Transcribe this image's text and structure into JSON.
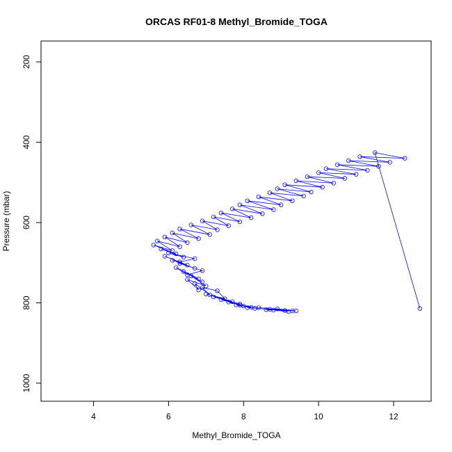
{
  "chart_data": {
    "type": "scatter",
    "title": "ORCAS RF01-8 Methyl_Bromide_TOGA",
    "xlabel": "Methyl_Bromide_TOGA",
    "ylabel": "Pressure (mbar)",
    "xlim": [
      2.6,
      13.0
    ],
    "ylim": [
      1045,
      148
    ],
    "y_reversed": true,
    "x_ticks": [
      4,
      6,
      8,
      10,
      12
    ],
    "y_ticks": [
      200,
      400,
      600,
      800,
      1000
    ],
    "grid": false,
    "legend": "none",
    "marker": "open-circle",
    "connected": true,
    "colors": {
      "series": "#0000ff"
    },
    "series": [
      {
        "x": [
          9.2,
          8.8,
          9.4,
          8.9,
          8.6,
          9.1,
          8.1,
          8.7,
          9.3,
          8.4,
          7.9,
          8.3,
          7.8,
          8.2,
          7.6,
          8.0,
          7.4,
          7.9,
          7.2,
          7.7,
          7.0,
          7.5,
          7.3,
          6.9,
          7.1,
          6.7,
          6.8,
          6.5,
          7.0,
          6.6,
          6.9,
          6.4,
          6.8,
          6.2,
          6.5,
          6.9,
          6.3,
          6.7,
          6.1,
          6.5,
          5.9,
          6.3,
          6.7,
          6.0,
          6.4,
          5.8,
          6.2,
          5.6,
          6.1,
          5.7,
          6.3,
          5.9,
          6.5,
          6.1,
          6.8,
          6.3,
          7.1,
          6.6,
          7.3,
          6.9,
          7.6,
          7.2,
          7.9,
          7.4,
          8.2,
          7.7,
          8.5,
          7.9,
          8.8,
          8.1,
          9.0,
          8.4,
          9.3,
          8.7,
          9.6,
          8.9,
          9.8,
          9.1,
          10.1,
          9.4,
          10.4,
          9.7,
          10.7,
          10.0,
          11.0,
          10.2,
          11.3,
          10.5,
          11.6,
          10.8,
          11.9,
          11.1,
          12.3,
          11.5,
          12.7
        ],
        "y": [
          822,
          818,
          820,
          815,
          817,
          819,
          812,
          816,
          820,
          812,
          806,
          814,
          805,
          811,
          798,
          808,
          792,
          803,
          785,
          797,
          778,
          790,
          770,
          762,
          780,
          752,
          768,
          742,
          758,
          733,
          748,
          722,
          740,
          712,
          730,
          720,
          702,
          714,
          694,
          706,
          684,
          698,
          690,
          676,
          686,
          666,
          678,
          656,
          670,
          646,
          660,
          636,
          650,
          626,
          640,
          616,
          630,
          606,
          618,
          596,
          608,
          586,
          598,
          576,
          588,
          566,
          578,
          556,
          568,
          546,
          556,
          536,
          546,
          526,
          534,
          516,
          524,
          506,
          512,
          496,
          502,
          486,
          490,
          476,
          480,
          466,
          470,
          456,
          460,
          446,
          450,
          436,
          440,
          426,
          814
        ]
      }
    ]
  }
}
